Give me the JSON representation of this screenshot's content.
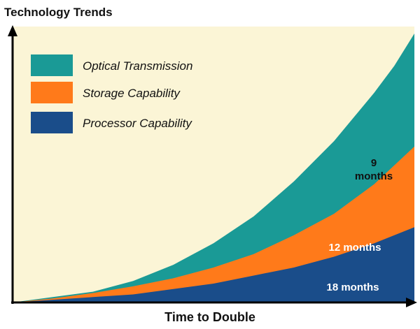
{
  "chart_data": {
    "type": "area",
    "title": "Technology Trends",
    "xlabel": "Time to Double",
    "ylabel": "",
    "grid": false,
    "legend_placement": "top-left",
    "series": [
      {
        "name": "Processor Capability",
        "color": "#1a4d8a",
        "label": "18 months",
        "x": [
          0,
          0.1,
          0.2,
          0.3,
          0.4,
          0.5,
          0.6,
          0.7,
          0.8,
          0.9,
          1.0
        ],
        "values": [
          0.0,
          0.01,
          0.02,
          0.03,
          0.05,
          0.07,
          0.1,
          0.13,
          0.17,
          0.22,
          0.28
        ]
      },
      {
        "name": "Storage Capability",
        "color": "#ff7a1a",
        "label": "12 months",
        "x": [
          0,
          0.1,
          0.2,
          0.3,
          0.4,
          0.5,
          0.6,
          0.7,
          0.8,
          0.9,
          1.0
        ],
        "values": [
          0.0,
          0.015,
          0.035,
          0.06,
          0.09,
          0.13,
          0.18,
          0.25,
          0.33,
          0.44,
          0.58
        ]
      },
      {
        "name": "Optical Transmission",
        "color": "#1a9a96",
        "label": "9\nmonths",
        "x": [
          0,
          0.1,
          0.2,
          0.3,
          0.4,
          0.5,
          0.6,
          0.7,
          0.8,
          0.9,
          0.95,
          1.0
        ],
        "values": [
          0.0,
          0.02,
          0.04,
          0.08,
          0.14,
          0.22,
          0.32,
          0.45,
          0.6,
          0.78,
          0.88,
          1.0
        ]
      }
    ],
    "legend": [
      "Optical Transmission",
      "Storage Capability",
      "Processor Capability"
    ]
  }
}
